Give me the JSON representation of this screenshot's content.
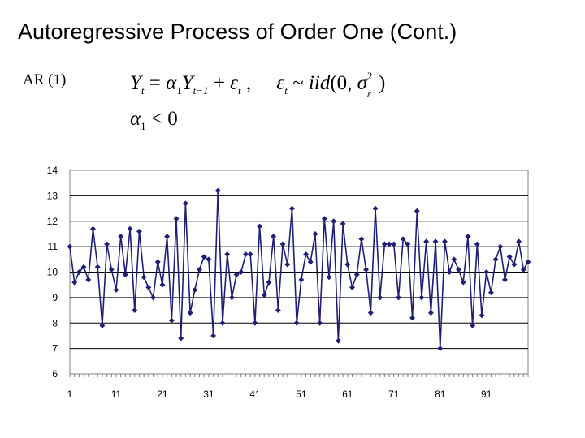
{
  "slide": {
    "title": "Autoregressive Process of Order One (Cont.)",
    "model_label": "AR (1)"
  },
  "equations": {
    "line1": {
      "Y": "Y",
      "t": "t",
      "eq": " = ",
      "alpha": "α",
      "one": "1",
      "t_minus_1": "t−1",
      "plus": " + ",
      "eps": "ε",
      "comma": " ,     ",
      "tilde": " ~ ",
      "iid": "iid",
      "open": "(0, ",
      "sigma": "σ",
      "two": "2",
      "close": ")"
    },
    "line2": {
      "alpha": "α",
      "one": "1",
      "lt": " < 0"
    }
  },
  "chart_data": {
    "type": "line",
    "series": [
      {
        "color": "#1f1f7a",
        "marker": "diamond",
        "x": [
          1,
          2,
          3,
          4,
          5,
          6,
          7,
          8,
          9,
          10,
          11,
          12,
          13,
          14,
          15,
          16,
          17,
          18,
          19,
          20,
          21,
          22,
          23,
          24,
          25,
          26,
          27,
          28,
          29,
          30,
          31,
          32,
          33,
          34,
          35,
          36,
          37,
          38,
          39,
          40,
          41,
          42,
          43,
          44,
          45,
          46,
          47,
          48,
          49,
          50,
          51,
          52,
          53,
          54,
          55,
          56,
          57,
          58,
          59,
          60,
          61,
          62,
          63,
          64,
          65,
          66,
          67,
          68,
          69,
          70,
          71,
          72,
          73,
          74,
          75,
          76,
          77,
          78,
          79,
          80,
          81,
          82,
          83,
          84,
          85,
          86,
          87,
          88,
          89,
          90,
          91,
          92,
          93,
          94,
          95,
          96,
          97,
          98,
          99,
          100
        ],
        "y": [
          11.0,
          9.6,
          10.0,
          10.2,
          9.7,
          11.7,
          10.2,
          7.9,
          11.1,
          10.1,
          9.3,
          11.4,
          9.9,
          11.7,
          8.5,
          11.6,
          9.8,
          9.4,
          9.0,
          10.4,
          9.5,
          11.4,
          8.1,
          12.1,
          7.4,
          12.7,
          8.4,
          9.3,
          10.1,
          10.6,
          10.5,
          7.5,
          13.2,
          8.0,
          10.7,
          9.0,
          9.9,
          10.0,
          10.7,
          10.7,
          8.0,
          11.8,
          9.1,
          9.6,
          11.4,
          8.5,
          11.1,
          10.3,
          12.5,
          8.0,
          9.7,
          10.7,
          10.4,
          11.5,
          8.0,
          12.1,
          9.8,
          12.0,
          7.3,
          11.9,
          10.3,
          9.4,
          9.9,
          11.3,
          10.1,
          8.4,
          12.5,
          9.0,
          11.1,
          11.1,
          11.1,
          9.0,
          11.3,
          11.1,
          8.2,
          12.4,
          9.0,
          11.2,
          8.4,
          11.2,
          7.0,
          11.2,
          10.0,
          10.5,
          10.1,
          9.6,
          11.4,
          7.9,
          11.1,
          8.3,
          10.0,
          9.2,
          10.5,
          11.0,
          9.7,
          10.6,
          10.3,
          11.2,
          10.1,
          10.4
        ]
      }
    ],
    "ylim": [
      6,
      14
    ],
    "yticks": [
      "6",
      "7",
      "8",
      "9",
      "10",
      "11",
      "12",
      "13",
      "14"
    ],
    "xticks": [
      "1",
      "11",
      "21",
      "31",
      "41",
      "51",
      "61",
      "71",
      "81",
      "91"
    ],
    "grid": "horizontal",
    "title": "",
    "xlabel": "",
    "ylabel": ""
  }
}
